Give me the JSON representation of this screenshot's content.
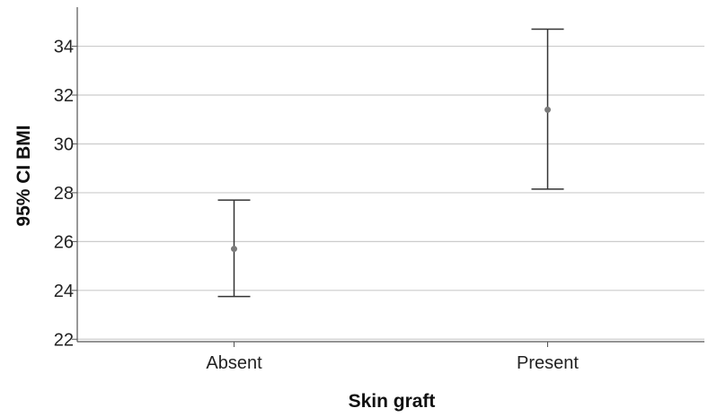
{
  "chart_data": {
    "type": "errorbar",
    "xlabel": "Skin graft",
    "ylabel": "95% CI BMI",
    "categories": [
      "Absent",
      "Present"
    ],
    "mean": [
      25.7,
      31.4
    ],
    "ci_lower": [
      23.75,
      28.15
    ],
    "ci_upper": [
      27.7,
      34.7
    ],
    "ylim": [
      21.9,
      35.6
    ],
    "yticks": [
      22,
      24,
      26,
      28,
      30,
      32,
      34
    ],
    "grid": true,
    "colors": {
      "errorbar": "#333333",
      "marker": "#7a7a7a",
      "grid": "#cccccc",
      "axis": "#555555"
    }
  }
}
